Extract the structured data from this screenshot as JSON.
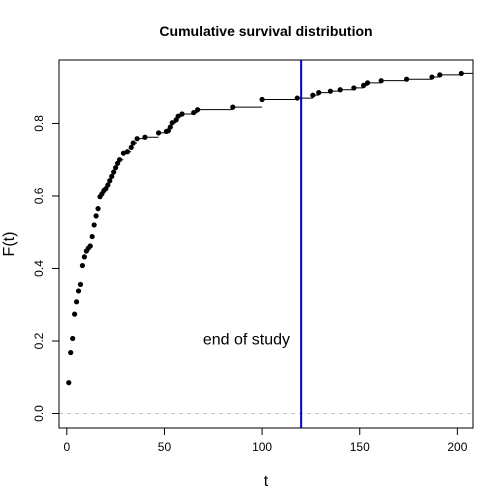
{
  "chart_data": {
    "type": "scatter",
    "title": "Cumulative survival distribution",
    "xlabel": "t",
    "ylabel": "F(t)",
    "xlim": [
      -4,
      208
    ],
    "ylim": [
      -0.04,
      0.975
    ],
    "x_ticks": [
      0,
      50,
      100,
      150,
      200
    ],
    "y_ticks": [
      0.0,
      0.2,
      0.4,
      0.6,
      0.8
    ],
    "grid": false,
    "step_line": true,
    "reference_line": {
      "y": 0.0,
      "style": "dashed",
      "color": "#bebebe"
    },
    "vertical_line": {
      "x": 120,
      "color": "#0000cd",
      "label": "end of study"
    },
    "annotation": {
      "text": "end of study",
      "x": 92,
      "y": 0.19
    },
    "colors": {
      "points": "#000000",
      "step": "#000000",
      "vline": "#0000cd",
      "ref": "#bebebe"
    },
    "series": [
      {
        "x": [
          1,
          2,
          3,
          4,
          5,
          6,
          7,
          8,
          9,
          10,
          11,
          12,
          13,
          14,
          15,
          16,
          17,
          18,
          19,
          20,
          21,
          22,
          23,
          24,
          25,
          26,
          27,
          29,
          31,
          33,
          34,
          36,
          40,
          47,
          51,
          52,
          53,
          54,
          56,
          57,
          59,
          65,
          67,
          85,
          100,
          118,
          126,
          129,
          135,
          140,
          147,
          152,
          154,
          161,
          174,
          187,
          191,
          202
        ],
        "y": [
          0.085,
          0.168,
          0.207,
          0.274,
          0.308,
          0.338,
          0.356,
          0.408,
          0.432,
          0.448,
          0.456,
          0.462,
          0.488,
          0.52,
          0.545,
          0.565,
          0.598,
          0.606,
          0.615,
          0.62,
          0.63,
          0.642,
          0.654,
          0.666,
          0.678,
          0.69,
          0.7,
          0.718,
          0.722,
          0.734,
          0.746,
          0.758,
          0.762,
          0.774,
          0.778,
          0.78,
          0.79,
          0.802,
          0.81,
          0.82,
          0.826,
          0.83,
          0.838,
          0.845,
          0.866,
          0.87,
          0.878,
          0.885,
          0.889,
          0.893,
          0.898,
          0.905,
          0.912,
          0.918,
          0.922,
          0.928,
          0.934,
          0.938
        ]
      }
    ]
  }
}
